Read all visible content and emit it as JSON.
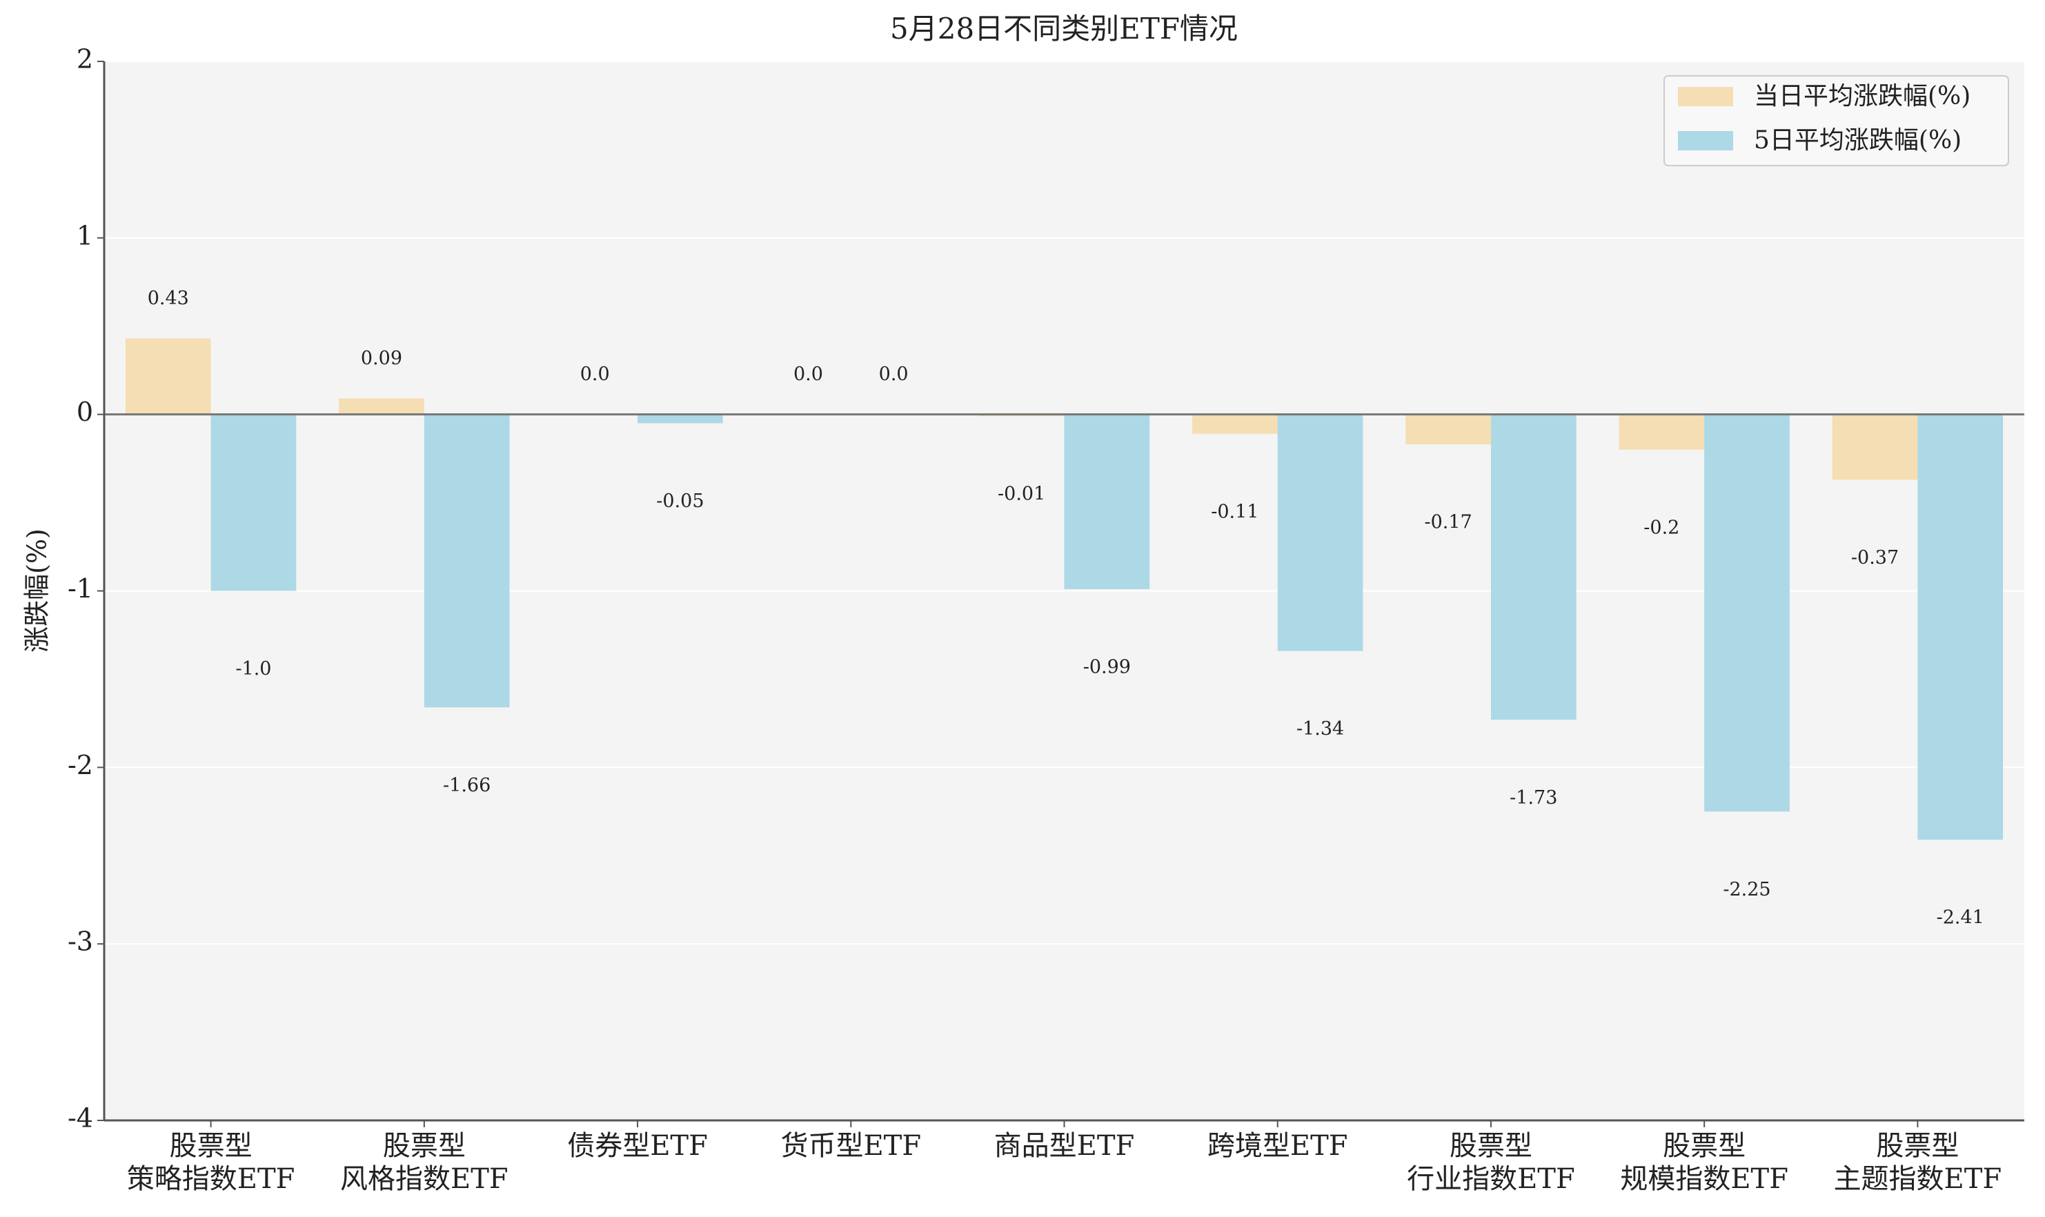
{
  "chart_data": {
    "type": "bar",
    "title": "5月28日不同类别ETF情况",
    "y_label": "涨跌幅(%)",
    "categories": [
      "股票型\n策略指数ETF",
      "股票型\n风格指数ETF",
      "债券型ETF",
      "货币型ETF",
      "商品型ETF",
      "跨境型ETF",
      "股票型\n行业指数ETF",
      "股票型\n规模指数ETF",
      "股票型\n主题指数ETF"
    ],
    "series": [
      {
        "name": "当日平均涨跌幅(%)",
        "color": "#f5deb3",
        "values": [
          0.43,
          0.09,
          0,
          0,
          -0.01,
          -0.11,
          -0.17,
          -0.2,
          -0.37
        ],
        "value_labels": [
          "0.43",
          "0.09",
          "0.0",
          "0.0",
          "-0.01",
          "-0.11",
          "-0.17",
          "-0.2",
          "-0.37"
        ]
      },
      {
        "name": "5日平均涨跌幅(%)",
        "color": "#add8e6",
        "values": [
          -1,
          -1.66,
          -0.05,
          0,
          -0.99,
          -1.34,
          -1.73,
          -2.25,
          -2.41
        ],
        "value_labels": [
          "-1.0",
          "-1.66",
          "-0.05",
          "0.0",
          "-0.99",
          "-1.34",
          "-1.73",
          "-2.25",
          "-2.41"
        ]
      }
    ],
    "ylim": [
      -4,
      2
    ],
    "yticks": [
      -4,
      -3,
      -2,
      -1,
      0,
      1,
      2
    ],
    "grid": true,
    "legend": "upper right"
  }
}
